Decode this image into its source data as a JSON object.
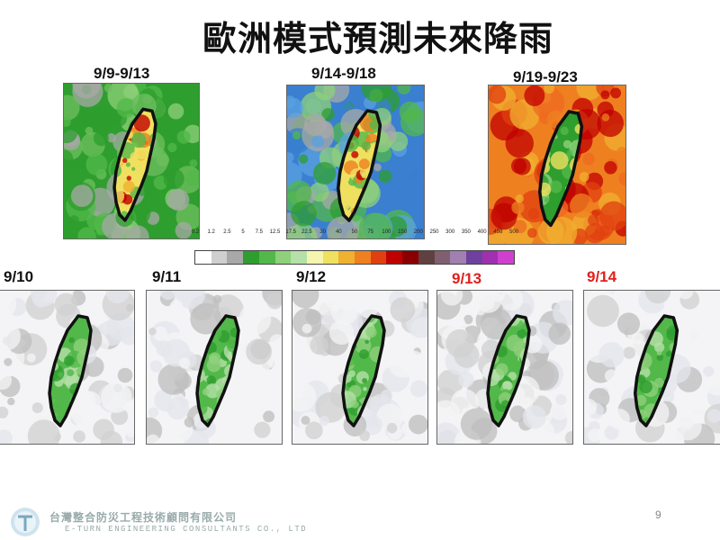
{
  "title": "歐洲模式預測未來降雨",
  "panels_top": [
    {
      "label": "9/9-9/13",
      "scheme": "green"
    },
    {
      "label": "9/14-9/18",
      "scheme": "blue"
    },
    {
      "label": "9/19-9/23",
      "scheme": "orange"
    }
  ],
  "panels_bottom": [
    {
      "label": "9/10",
      "highlight": false
    },
    {
      "label": "9/11",
      "highlight": false
    },
    {
      "label": "9/12",
      "highlight": false
    },
    {
      "label": "9/13",
      "highlight": true
    },
    {
      "label": "9/14",
      "highlight": true
    }
  ],
  "colorbar": {
    "ticks": [
      "0.2",
      "1.2",
      "2.5",
      "5",
      "7.5",
      "12.5",
      "17.5",
      "22.5",
      "30",
      "40",
      "50",
      "75",
      "100",
      "150",
      "200",
      "250",
      "300",
      "350",
      "400",
      "450",
      "500"
    ],
    "colors": [
      "#ffffff",
      "#cfcfcf",
      "#a8a8a8",
      "#2e9e2e",
      "#52b84a",
      "#8fd07a",
      "#b5e0a8",
      "#f5f5b0",
      "#f0e060",
      "#f0b030",
      "#ef8020",
      "#e04010",
      "#c00000",
      "#8a0000",
      "#604040",
      "#806070",
      "#a080b0",
      "#7040a0",
      "#a030b0",
      "#d040d0"
    ]
  },
  "footer": {
    "company_zh": "台灣整合防災工程技術顧問有限公司",
    "company_en": "E-TURN ENGINEERING CONSULTANTS CO., LTD",
    "page_number": "9"
  }
}
